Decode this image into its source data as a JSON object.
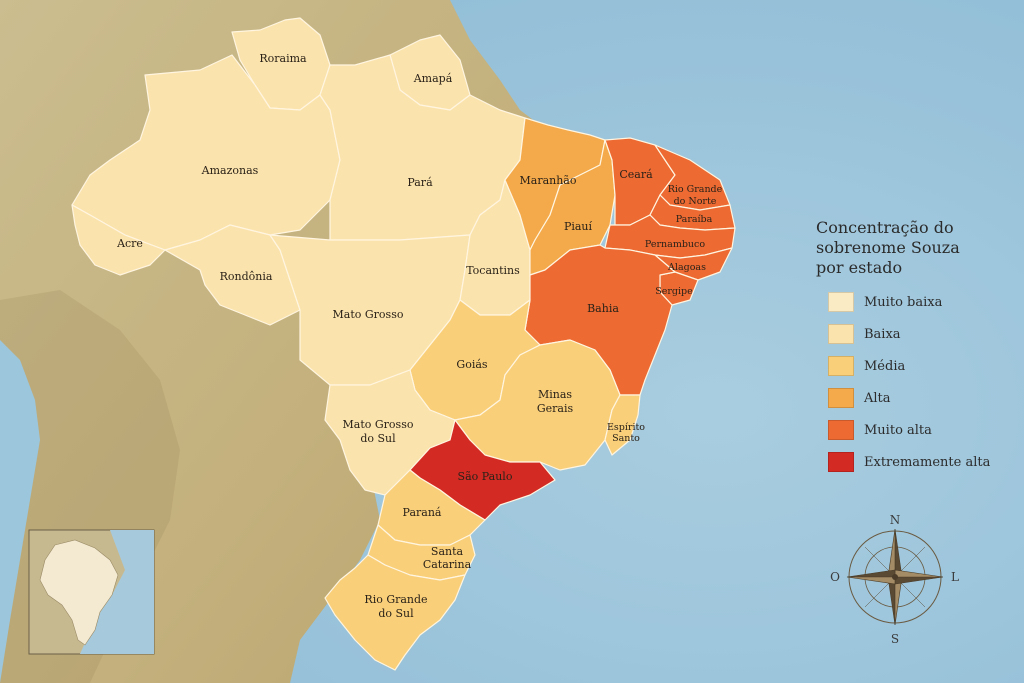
{
  "legend": {
    "title_lines": [
      "Concentração do",
      "sobrenome Souza",
      "por estado"
    ],
    "items": [
      {
        "label": "Muito baixa",
        "color": "#fbebc5"
      },
      {
        "label": "Baixa",
        "color": "#fbe3ad"
      },
      {
        "label": "Média",
        "color": "#f9cf7a"
      },
      {
        "label": "Alta",
        "color": "#f4a94a"
      },
      {
        "label": "Muito alta",
        "color": "#ed6a33"
      },
      {
        "label": "Extremamente alta",
        "color": "#d42a24"
      }
    ]
  },
  "compass": {
    "north": "N",
    "south": "S",
    "east": "L",
    "west": "O"
  },
  "states": {
    "roraima": {
      "label": "Roraima",
      "level": "Baixa"
    },
    "amapa": {
      "label": "Amapá",
      "level": "Baixa"
    },
    "amazonas": {
      "label": "Amazonas",
      "level": "Baixa"
    },
    "para": {
      "label": "Pará",
      "level": "Baixa"
    },
    "acre": {
      "label": "Acre",
      "level": "Baixa"
    },
    "rondonia": {
      "label": "Rondônia",
      "level": "Baixa"
    },
    "mato_grosso": {
      "label": "Mato Grosso",
      "level": "Baixa"
    },
    "tocantins": {
      "label": "Tocantins",
      "level": "Baixa"
    },
    "maranhao": {
      "label": "Maranhão",
      "level": "Alta"
    },
    "piaui": {
      "label": "Piauí",
      "level": "Alta"
    },
    "ceara": {
      "label": "Ceará",
      "level": "Muito alta"
    },
    "rio_grande_do_norte": {
      "label_lines": [
        "Rio Grande",
        "do Norte"
      ],
      "level": "Muito alta"
    },
    "paraiba": {
      "label": "Paraíba",
      "level": "Muito alta"
    },
    "pernambuco": {
      "label": "Pernambuco",
      "level": "Muito alta"
    },
    "alagoas": {
      "label": "Alagoas",
      "level": "Muito alta"
    },
    "sergipe": {
      "label": "Sergipe",
      "level": "Muito alta"
    },
    "bahia": {
      "label": "Bahia",
      "level": "Muito alta"
    },
    "goias": {
      "label": "Goiás",
      "level": "Média"
    },
    "minas_gerais": {
      "label_lines": [
        "Minas",
        "Gerais"
      ],
      "level": "Média"
    },
    "espirito_santo": {
      "label_lines": [
        "Espírito",
        "Santo"
      ],
      "level": "Média"
    },
    "mato_grosso_do_sul": {
      "label_lines": [
        "Mato Grosso",
        "do Sul"
      ],
      "level": "Baixa"
    },
    "sao_paulo": {
      "label": "São Paulo",
      "level": "Extremamente alta"
    },
    "parana": {
      "label": "Paraná",
      "level": "Média"
    },
    "santa_catarina": {
      "label_lines": [
        "Santa",
        "Catarina"
      ],
      "level": "Média"
    },
    "rio_grande_do_sul": {
      "label_lines": [
        "Rio Grande",
        "do Sul"
      ],
      "level": "Média"
    }
  }
}
